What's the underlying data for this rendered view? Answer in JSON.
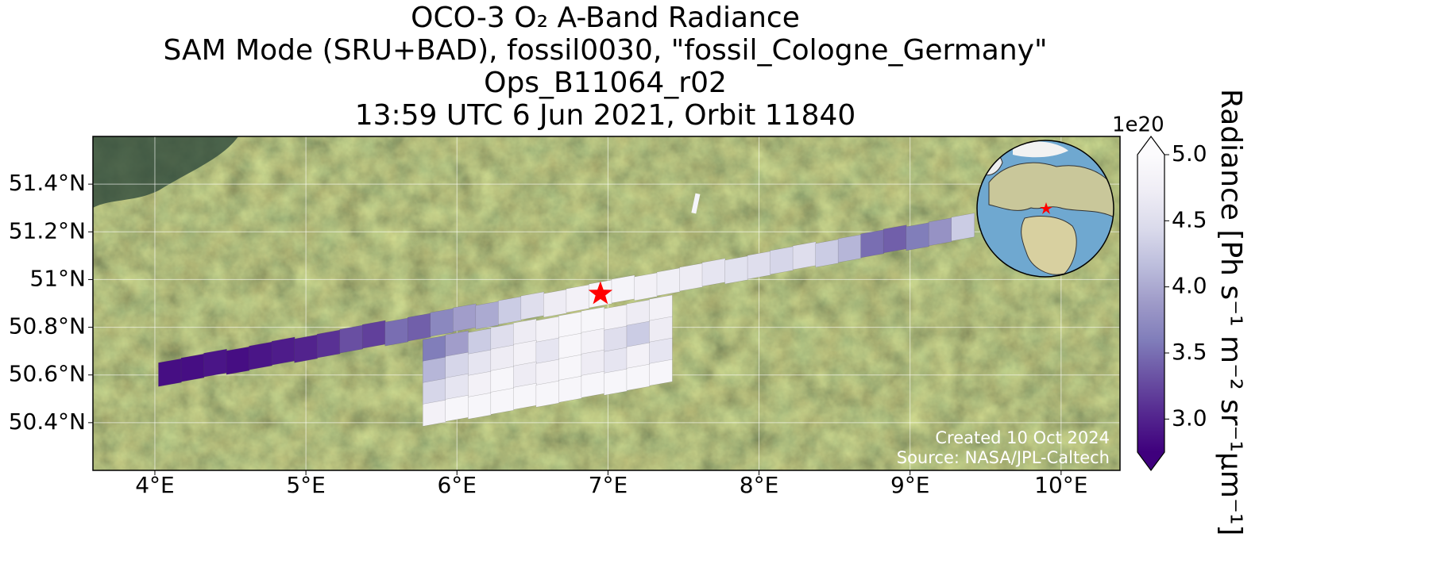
{
  "chart_data": {
    "type": "map",
    "title_lines": [
      "OCO-3 O₂ A-Band Radiance",
      "SAM Mode (SRU+BAD), fossil0030, \"fossil_Cologne_Germany\"",
      "Ops_B11064_r02",
      "13:59 UTC 6 Jun 2021, Orbit 11840"
    ],
    "xlim": [
      3.59,
      10.39
    ],
    "ylim": [
      50.2,
      51.6
    ],
    "xticks": [
      {
        "value": 4,
        "label": "4°E"
      },
      {
        "value": 5,
        "label": "5°E"
      },
      {
        "value": 6,
        "label": "6°E"
      },
      {
        "value": 7,
        "label": "7°E"
      },
      {
        "value": 8,
        "label": "8°E"
      },
      {
        "value": 9,
        "label": "9°E"
      },
      {
        "value": 10,
        "label": "10°E"
      }
    ],
    "yticks": [
      {
        "value": 50.4,
        "label": "50.4°N"
      },
      {
        "value": 50.6,
        "label": "50.6°N"
      },
      {
        "value": 50.8,
        "label": "50.8°N"
      },
      {
        "value": 51,
        "label": "51°N"
      },
      {
        "value": 51.2,
        "label": "51.2°N"
      },
      {
        "value": 51.4,
        "label": "51.4°N"
      }
    ],
    "grid": true,
    "colormap": [
      "#3f007d",
      "#54278f",
      "#6a51a3",
      "#807dba",
      "#9e9ac8",
      "#bcbddc",
      "#dadaeb",
      "#efedf5",
      "#fcfbfd"
    ],
    "clim": [
      2.75,
      5.0
    ],
    "colorbar_ticks": [
      {
        "value": 3,
        "label": "3.0"
      },
      3.5,
      {
        "value": 4,
        "label": "4.0"
      },
      4.5,
      {
        "value": 5,
        "label": "5.0"
      }
    ],
    "colorbar_exponent": "1e20",
    "colorbar_label": "Radiance [Ph s⁻¹ m⁻² sr⁻¹μm⁻¹]",
    "swath": {
      "lon": [
        4.1,
        4.25,
        4.4,
        4.55,
        4.7,
        4.85,
        5.0,
        5.15,
        5.3,
        5.45,
        5.6,
        5.75,
        5.9,
        6.05,
        6.2,
        6.35,
        6.5,
        6.65,
        6.8,
        6.95,
        7.1,
        7.25,
        7.4,
        7.55,
        7.7,
        7.85,
        8.0,
        8.15,
        8.3,
        8.45,
        8.6,
        8.75,
        8.9,
        9.05,
        9.2,
        9.35
      ],
      "lat": [
        50.61,
        50.63,
        50.65,
        50.66,
        50.68,
        50.7,
        50.71,
        50.73,
        50.75,
        50.77,
        50.78,
        50.8,
        50.82,
        50.84,
        50.85,
        50.87,
        50.89,
        50.9,
        50.92,
        50.94,
        50.96,
        50.97,
        50.99,
        51.01,
        51.03,
        51.04,
        51.06,
        51.08,
        51.1,
        51.11,
        51.13,
        51.15,
        51.17,
        51.18,
        51.2,
        51.22
      ],
      "values": [
        2.85,
        2.85,
        2.9,
        2.85,
        2.9,
        2.95,
        3.0,
        3.1,
        3.3,
        3.2,
        3.5,
        3.4,
        3.7,
        3.9,
        4.0,
        4.3,
        4.5,
        4.7,
        4.8,
        4.9,
        4.85,
        4.8,
        4.75,
        4.7,
        4.6,
        4.55,
        4.5,
        4.4,
        4.5,
        4.3,
        4.1,
        3.5,
        3.4,
        3.6,
        3.8,
        4.3
      ]
    },
    "sam_lon": [
      5.85,
      6.0,
      6.15,
      6.3,
      6.45,
      6.6,
      6.75,
      6.9,
      7.05,
      7.2,
      7.35
    ],
    "sam_rows": [
      {
        "lat": [
          50.71,
          50.73,
          50.74,
          50.76,
          50.78,
          50.79,
          50.81,
          50.83,
          50.84,
          50.86,
          50.88
        ],
        "values": [
          3.6,
          3.9,
          4.3,
          4.5,
          4.7,
          4.8,
          4.9,
          4.9,
          4.8,
          4.7,
          4.8
        ]
      },
      {
        "lat": [
          50.62,
          50.64,
          50.65,
          50.67,
          50.69,
          50.7,
          50.72,
          50.74,
          50.75,
          50.77,
          50.79
        ],
        "values": [
          4.1,
          4.4,
          4.6,
          4.7,
          4.8,
          4.6,
          4.9,
          4.8,
          4.5,
          4.3,
          4.7
        ]
      },
      {
        "lat": [
          50.53,
          50.55,
          50.56,
          50.58,
          50.6,
          50.61,
          50.63,
          50.65,
          50.66,
          50.68,
          50.7
        ],
        "values": [
          4.4,
          4.6,
          4.8,
          4.9,
          4.7,
          4.8,
          4.9,
          4.7,
          4.6,
          4.8,
          4.6
        ]
      },
      {
        "lat": [
          50.44,
          50.46,
          50.47,
          50.49,
          50.51,
          50.52,
          50.54,
          50.56,
          50.57,
          50.59,
          50.61
        ],
        "values": [
          4.8,
          4.9,
          4.9,
          4.9,
          4.9,
          4.9,
          4.9,
          4.9,
          4.9,
          4.9,
          4.9
        ]
      }
    ],
    "target": {
      "lon": 6.95,
      "lat": 50.94
    },
    "annotations": [
      "Created 10 Oct 2024",
      "Source: NASA/JPL-Caltech"
    ]
  }
}
